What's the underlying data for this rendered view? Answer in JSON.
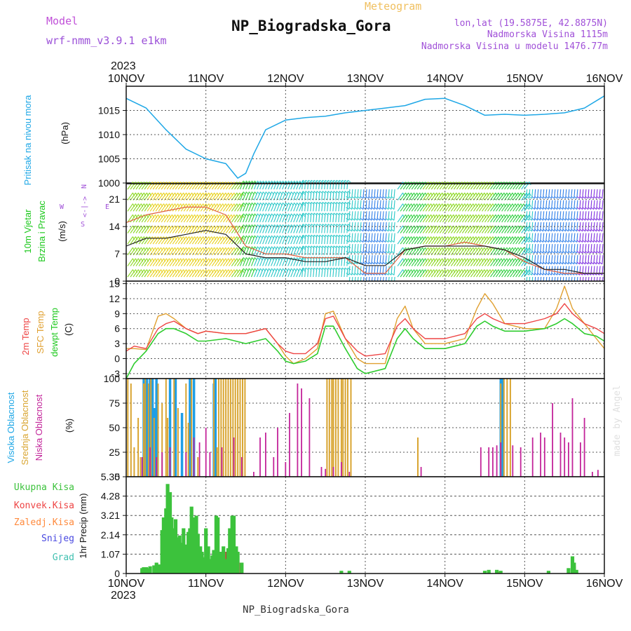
{
  "header": {
    "model_label": "Model",
    "model_name": "wrf-nmm_v3.9.1  e1km",
    "meteogram": "Meteogram",
    "station": "NP_Biogradska_Gora",
    "lonlat": "lon,lat (19.5875E, 42.8875N)",
    "elevation": "Nadmorska Visina 1115m",
    "model_elevation": "Nadmorska Visina u modelu 1476.77m"
  },
  "footer": {
    "station": "NP_Biogradska_Gora",
    "credit": "made by Angel"
  },
  "colors": {
    "pressure": "#1ea7e6",
    "temp2m": "#ee4444",
    "sfc": "#e0a030",
    "dewpt": "#2ecc2e",
    "high": "#1e9ee6",
    "mid": "#d9a531",
    "low": "#c3249a",
    "precip": "#3cc23c",
    "convective": "#ee4444",
    "freezing": "#ff8a3d",
    "snow": "#4848e0",
    "graupel": "#40c0b0"
  },
  "chart_data": [
    {
      "type": "line",
      "panel": "pressure",
      "year": "2023",
      "x_ticks": [
        "10NOV",
        "11NOV",
        "12NOV",
        "13NOV",
        "14NOV",
        "15NOV",
        "16NOV"
      ],
      "ylabel_colored": "Pritisak na nivou mora",
      "ylabel_unit": "(hPa)",
      "ylim": [
        1000,
        1020
      ],
      "y_ticks": [
        1000,
        1005,
        1010,
        1015
      ],
      "grid": true,
      "x_day": [
        0,
        0.25,
        0.5,
        0.75,
        1.0,
        1.25,
        1.4,
        1.5,
        1.6,
        1.75,
        2.0,
        2.25,
        2.5,
        2.75,
        3.0,
        3.25,
        3.5,
        3.75,
        4.0,
        4.25,
        4.5,
        4.75,
        5.0,
        5.25,
        5.5,
        5.75,
        6.0
      ],
      "values": [
        1017.5,
        1015.5,
        1011,
        1007,
        1005,
        1004,
        1001,
        1002,
        1006,
        1011,
        1013,
        1013.5,
        1013.8,
        1014.5,
        1015,
        1015.5,
        1016,
        1017.3,
        1017.5,
        1016,
        1014,
        1014.2,
        1014,
        1014.2,
        1014.5,
        1015.5,
        1018
      ]
    },
    {
      "type": "line",
      "panel": "wind",
      "ylabel_colored": [
        "10m Vjetar",
        "Brzina i Pravac"
      ],
      "ylabel_unit": "(m/s)",
      "ylim": [
        0,
        25
      ],
      "y_ticks": [
        0,
        7,
        14,
        21
      ],
      "grid": true,
      "compass": {
        "n": "N",
        "w": "W",
        "e": "E",
        "s": "S",
        "arrow_row": "<-|->"
      },
      "x_day": [
        0,
        0.25,
        0.5,
        0.75,
        1.0,
        1.25,
        1.5,
        1.75,
        2.0,
        2.25,
        2.5,
        2.75,
        3.0,
        3.25,
        3.5,
        3.75,
        4.0,
        4.25,
        4.5,
        4.75,
        5.0,
        5.25,
        5.5,
        5.75,
        6.0
      ],
      "series": [
        {
          "name": "speed",
          "values": [
            9,
            11,
            11,
            12,
            13,
            12,
            7,
            6,
            6,
            5,
            5,
            6,
            4,
            4,
            8,
            9,
            9,
            9,
            9,
            8,
            6,
            3,
            3,
            2,
            2
          ]
        },
        {
          "name": "gust",
          "values": [
            15,
            17,
            18,
            19,
            19,
            17,
            9,
            7,
            7,
            6,
            6,
            6,
            2,
            2,
            8,
            9,
            9,
            10,
            9,
            8,
            5,
            3,
            2,
            2,
            2
          ]
        }
      ],
      "barb_direction_by_day": [
        {
          "from": 0.0,
          "to": 1.4,
          "direction": "SW"
        },
        {
          "from": 1.4,
          "to": 2.2,
          "direction": "SSW"
        },
        {
          "from": 2.2,
          "to": 2.8,
          "direction": "S"
        },
        {
          "from": 2.8,
          "to": 3.4,
          "direction": "N"
        },
        {
          "from": 3.4,
          "to": 5.0,
          "direction": "SW"
        },
        {
          "from": 5.0,
          "to": 6.0,
          "direction": "N"
        }
      ]
    },
    {
      "type": "line",
      "panel": "temperature",
      "ylabel_colored": [
        "2m Temp",
        "SFC Temp",
        "dewpt Temp"
      ],
      "ylabel_unit": "(C)",
      "ylim": [
        -4,
        15.5
      ],
      "y_ticks": [
        -3,
        0,
        3,
        6,
        9,
        12,
        15
      ],
      "grid": true,
      "x_day": [
        0,
        0.1,
        0.25,
        0.4,
        0.5,
        0.6,
        0.75,
        0.9,
        1.0,
        1.25,
        1.5,
        1.75,
        1.9,
        2.0,
        2.1,
        2.25,
        2.4,
        2.5,
        2.6,
        2.75,
        2.9,
        3.0,
        3.25,
        3.4,
        3.5,
        3.6,
        3.75,
        4.0,
        4.25,
        4.4,
        4.5,
        4.6,
        4.75,
        5.0,
        5.25,
        5.4,
        5.5,
        5.6,
        5.75,
        5.9,
        6.0
      ],
      "series": [
        {
          "name": "2m Temp",
          "values": [
            1.5,
            2.5,
            2,
            6,
            7,
            7.5,
            6,
            5,
            5.5,
            5,
            5,
            6,
            3,
            1.5,
            1,
            1,
            3,
            8,
            8.5,
            4,
            1.5,
            0.5,
            1,
            6.5,
            8,
            6,
            4,
            4,
            5,
            8,
            9,
            8,
            7,
            7,
            8,
            9,
            11,
            9,
            7,
            6,
            5
          ]
        },
        {
          "name": "SFC Temp",
          "values": [
            2,
            2,
            1.8,
            8.5,
            9,
            8,
            6,
            5,
            5.5,
            5,
            5,
            6,
            3,
            0.5,
            -1,
            0,
            2,
            9,
            9.5,
            4,
            0,
            -1,
            -1,
            8,
            10.5,
            6,
            3,
            3,
            4,
            10,
            13,
            11,
            7,
            6,
            6,
            10,
            14.5,
            10,
            7,
            4,
            2
          ]
        },
        {
          "name": "dewpt Temp",
          "values": [
            -4,
            -1,
            1.5,
            5,
            6,
            6,
            5,
            3.5,
            3.5,
            4,
            3,
            4,
            1.5,
            -0.5,
            -1,
            -0.5,
            1,
            6.5,
            6.5,
            2,
            -2,
            -3,
            -2,
            4,
            6,
            4,
            2,
            2,
            3,
            6.5,
            7.5,
            6.5,
            5.5,
            5.5,
            6,
            7,
            8,
            7,
            5,
            4.5,
            3.5
          ]
        }
      ]
    },
    {
      "type": "bar",
      "panel": "cloud",
      "ylabel_colored": [
        "Visoka Oblacnost",
        "Srednja Oblacnost",
        "Niska Oblacnost"
      ],
      "ylabel_unit": "(%)",
      "ylim": [
        0,
        100
      ],
      "y_ticks": [
        0,
        25,
        50,
        75,
        100
      ],
      "grid": true,
      "series": [
        {
          "name": "Visoka Oblacnost",
          "x_day": [
            0.22,
            0.26,
            0.3,
            0.33,
            0.35,
            0.38,
            0.55,
            0.62,
            0.7,
            0.8,
            0.85,
            1.1,
            1.12,
            4.7,
            4.72
          ],
          "values": [
            100,
            100,
            100,
            100,
            70,
            100,
            100,
            100,
            65,
            100,
            100,
            95,
            100,
            100,
            100
          ]
        },
        {
          "name": "Srednja Oblacnost",
          "x_day": [
            0.02,
            0.06,
            0.1,
            0.15,
            0.18,
            0.22,
            0.24,
            0.28,
            0.31,
            0.35,
            0.4,
            0.45,
            0.5,
            0.52,
            0.6,
            0.65,
            0.75,
            0.78,
            0.82,
            0.9,
            1.1,
            1.14,
            1.16,
            1.19,
            1.22,
            1.25,
            1.28,
            1.31,
            1.34,
            1.37,
            1.4,
            1.43,
            1.46,
            1.49,
            2.52,
            2.55,
            2.58,
            2.6,
            2.63,
            2.66,
            2.7,
            2.72,
            2.75,
            2.78,
            2.82,
            3.66,
            4.7,
            4.74,
            4.78,
            4.82
          ],
          "values": [
            100,
            95,
            30,
            60,
            20,
            95,
            100,
            95,
            100,
            60,
            95,
            75,
            100,
            60,
            100,
            70,
            95,
            55,
            100,
            20,
            100,
            30,
            100,
            100,
            100,
            100,
            100,
            100,
            100,
            100,
            100,
            100,
            100,
            100,
            100,
            100,
            100,
            100,
            100,
            100,
            100,
            100,
            100,
            100,
            100,
            40,
            95,
            100,
            100,
            100
          ]
        },
        {
          "name": "Niska Oblacnost",
          "x_day": [
            0.2,
            0.3,
            0.38,
            0.45,
            0.55,
            0.75,
            0.85,
            0.92,
            1.0,
            1.05,
            1.2,
            1.35,
            1.45,
            1.6,
            1.68,
            1.75,
            1.85,
            1.9,
            2.0,
            2.05,
            2.15,
            2.2,
            2.3,
            2.45,
            2.5,
            2.6,
            2.7,
            2.8,
            3.7,
            4.45,
            4.55,
            4.6,
            4.65,
            4.7,
            4.85,
            4.95,
            5.1,
            5.2,
            5.25,
            5.35,
            5.45,
            5.5,
            5.55,
            5.6,
            5.7,
            5.75,
            5.85,
            5.92
          ],
          "values": [
            20,
            30,
            20,
            25,
            30,
            25,
            40,
            35,
            50,
            25,
            30,
            40,
            20,
            5,
            40,
            45,
            20,
            50,
            15,
            65,
            95,
            90,
            80,
            10,
            8,
            10,
            15,
            5,
            10,
            30,
            30,
            30,
            32,
            35,
            32,
            30,
            40,
            45,
            40,
            75,
            45,
            40,
            35,
            80,
            35,
            60,
            5,
            7
          ]
        }
      ]
    },
    {
      "type": "bar",
      "panel": "precip",
      "ylabel_colored": [
        "Ukupna Kisa",
        "Konvek.Kisa",
        "Zaledj.Kisa",
        "Snijeg",
        "Grad"
      ],
      "ylabel_unit": "1hr Precip (mm)",
      "ylim": [
        0,
        5.35
      ],
      "y_ticks": [
        0,
        1.07,
        2.14,
        3.21,
        4.28,
        5.35
      ],
      "y_tick_labels": [
        "0",
        "1.07",
        "2.14",
        "3.21",
        "4.28",
        "5.35"
      ],
      "grid": true,
      "x_ticks_bottom": [
        "10NOV",
        "11NOV",
        "12NOV",
        "13NOV",
        "14NOV",
        "15NOV",
        "16NOV"
      ],
      "year_bottom": "2023",
      "x_day": [
        0.2,
        0.22,
        0.25,
        0.28,
        0.3,
        0.35,
        0.38,
        0.42,
        0.45,
        0.47,
        0.5,
        0.52,
        0.55,
        0.57,
        0.6,
        0.62,
        0.65,
        0.67,
        0.7,
        0.72,
        0.75,
        0.78,
        0.8,
        0.82,
        0.85,
        0.88,
        0.9,
        0.93,
        0.95,
        0.98,
        1.0,
        1.03,
        1.05,
        1.08,
        1.1,
        1.13,
        1.15,
        1.18,
        1.2,
        1.22,
        1.25,
        1.28,
        1.3,
        1.33,
        1.35,
        1.38,
        1.4,
        1.45,
        2.7,
        2.8,
        4.5,
        4.55,
        4.65,
        4.7,
        5.3,
        5.55,
        5.6,
        5.62,
        5.65
      ],
      "values": [
        0.3,
        0.35,
        0.35,
        0.3,
        0.4,
        0.45,
        0.6,
        0.5,
        2.4,
        3.1,
        3.6,
        4.95,
        4.5,
        3.1,
        2.5,
        3.0,
        2.0,
        2.1,
        1.7,
        2.5,
        1.6,
        2.3,
        2.5,
        3.7,
        3.1,
        3.2,
        2.2,
        1.5,
        1.2,
        0.9,
        2.5,
        1.5,
        0.8,
        1.0,
        1.3,
        3.2,
        3.1,
        1.2,
        1.0,
        1.5,
        0.8,
        1.4,
        2.5,
        3.2,
        3.2,
        1.5,
        1.2,
        0.6,
        0.15,
        0.15,
        0.15,
        0.2,
        0.2,
        0.15,
        0.15,
        0.3,
        0.95,
        0.6,
        0.2
      ],
      "convective": [
        0,
        0,
        0,
        0,
        0,
        0,
        0,
        0,
        0,
        0,
        0,
        0,
        0,
        0,
        0,
        0,
        0,
        0,
        0,
        0,
        0,
        0,
        0,
        0,
        0,
        0,
        0,
        0,
        0,
        0,
        0.6,
        0,
        0,
        0,
        0,
        0,
        0,
        0,
        0.8,
        1.2,
        0,
        0,
        0,
        0,
        0,
        0,
        0.6,
        0,
        0,
        0,
        0,
        0,
        0.1,
        0,
        0,
        0,
        0.4,
        0,
        0
      ]
    }
  ]
}
